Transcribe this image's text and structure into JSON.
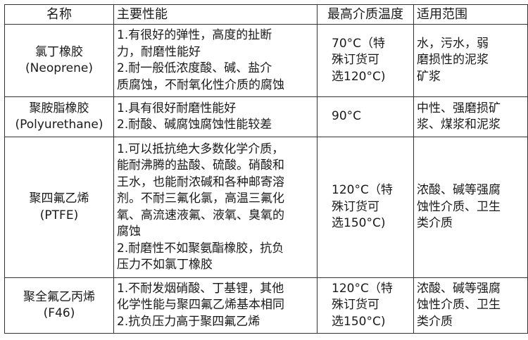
{
  "headers": [
    "名称",
    "主要性能",
    "最高介质温度",
    "适用范围"
  ],
  "rows": [
    {
      "name": [
        "氯丁橡胶",
        "(Neoprene)"
      ],
      "perf": [
        "1.有很好的弹性，高度的扯断",
        "力，耐磨性能好",
        "2.耐一般低浓度酸、碱、盐介",
        "质腐蚀，不耐氧化性介质的腐蚀"
      ],
      "temp": [
        "70°C（特",
        "殊订货可",
        "选120°C)"
      ],
      "scope": [
        "水，污水，弱",
        "磨损性的泥浆",
        "矿浆"
      ]
    },
    {
      "name": [
        "聚胺脂橡胶",
        "(Polyurethane)"
      ],
      "perf": [
        "1.具有很好耐磨性能好",
        "2.耐酸、碱腐蚀腐蚀性能较差"
      ],
      "temp": [
        "90°C"
      ],
      "scope": [
        "中性、强磨损矿",
        "浆、煤浆和泥浆"
      ]
    },
    {
      "name": [
        "聚四氟乙烯",
        "(PTFE)"
      ],
      "perf": [
        "1.可以抵抗绝大多数化学介质，",
        "能耐沸腾的盐酸、硫酸。硝酸和",
        "王水，也能耐浓碱和各种邮寄溶",
        "剂。不耐三氟化氯，高温三氟化",
        "氧、高流速液氟、液氧、臭氧的",
        "腐蚀",
        "2.耐磨性不如聚氨酯橡胶，抗负",
        "压力不如氯丁橡胶"
      ],
      "temp": [
        "120°C（特",
        "殊订货可",
        "选150°C)"
      ],
      "scope": [
        "浓酸、碱等强腐",
        "蚀性介质、卫生",
        "类介质"
      ]
    },
    {
      "name": [
        "聚全氟乙丙烯",
        "(F46)"
      ],
      "perf": [
        "1.不耐发烟硝酸、丁基锂，其他",
        "化学性能与聚四氟乙烯基本相同",
        "2.抗负压力高于聚四氟乙烯"
      ],
      "temp": [
        "120°C（特",
        "殊订货可",
        "选150°C)"
      ],
      "scope": [
        "浓酸、碱等强腐",
        "蚀性介质、卫生",
        "类介质"
      ]
    }
  ]
}
